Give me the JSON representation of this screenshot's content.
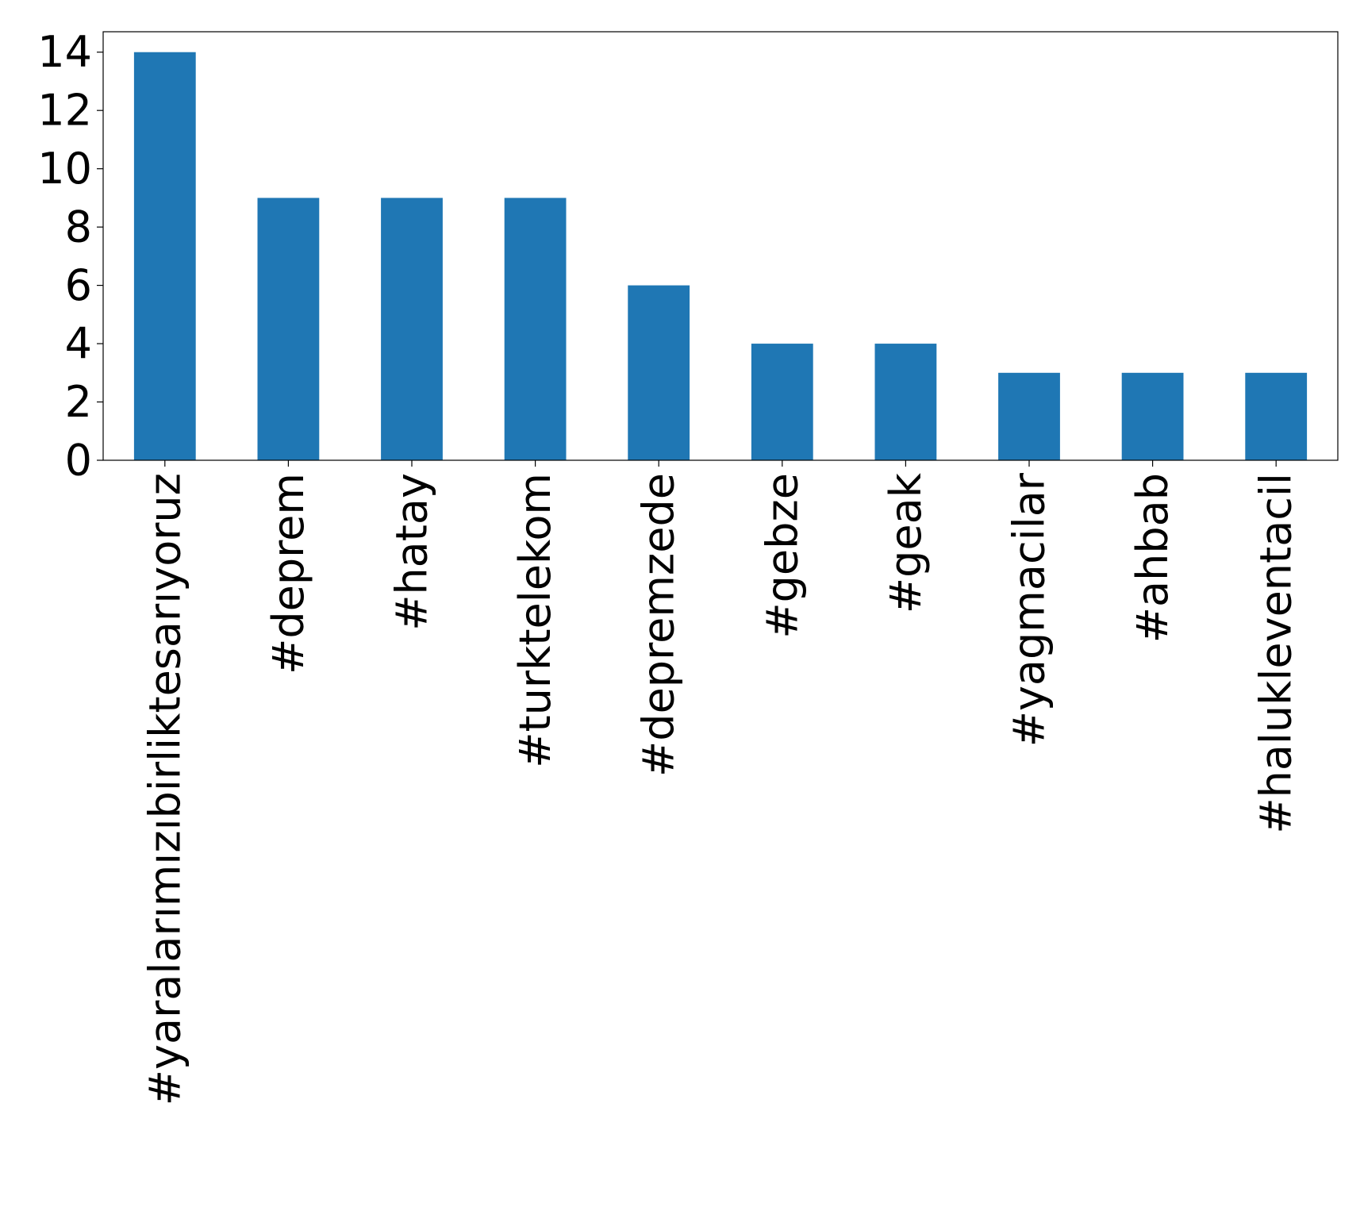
{
  "chart_data": {
    "type": "bar",
    "title": "",
    "xlabel": "",
    "ylabel": "",
    "categories": [
      "#yaralarımızıbirliktesarıyoruz",
      "#deprem",
      "#hatay",
      "#turktelekom",
      "#depremzede",
      "#gebze",
      "#geak",
      "#yagmacilar",
      "#ahbab",
      "#haluklevent​acil"
    ],
    "values": [
      14,
      9,
      9,
      9,
      6,
      4,
      4,
      3,
      3,
      3
    ],
    "ylim": [
      0,
      14.7
    ],
    "yticks": [
      0,
      2,
      4,
      6,
      8,
      10,
      12,
      14
    ],
    "bar_color": "#1f77b4",
    "grid": false,
    "legend": "none"
  }
}
